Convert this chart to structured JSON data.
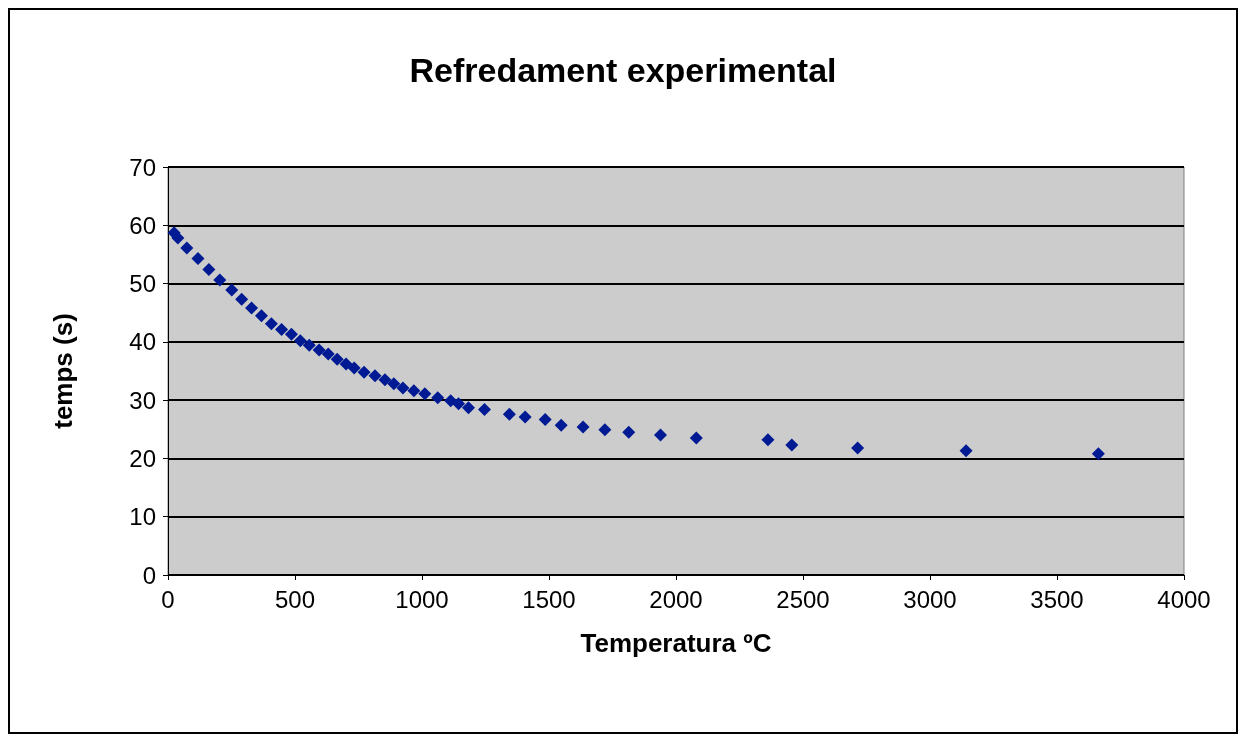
{
  "chart_data": {
    "type": "scatter",
    "title": "Refredament experimental",
    "xlabel": "Temperatura ºC",
    "ylabel": "temps (s)",
    "x": [
      24,
      39,
      74,
      118,
      161,
      204,
      251,
      290,
      329,
      368,
      407,
      447,
      486,
      521,
      556,
      595,
      631,
      666,
      701,
      733,
      772,
      815,
      854,
      889,
      925,
      968,
      1011,
      1062,
      1113,
      1144,
      1183,
      1246,
      1344,
      1406,
      1485,
      1548,
      1634,
      1720,
      1814,
      1939,
      2080,
      2362,
      2456,
      2715,
      3142,
      3663
    ],
    "series": [
      {
        "color": "#001a94",
        "values": [
          58.7,
          57.8,
          56.1,
          54.3,
          52.4,
          50.6,
          48.9,
          47.3,
          45.8,
          44.5,
          43.1,
          42.1,
          41.3,
          40.2,
          39.4,
          38.6,
          37.9,
          37.0,
          36.2,
          35.5,
          34.8,
          34.2,
          33.5,
          32.8,
          32.1,
          31.6,
          31.1,
          30.4,
          29.9,
          29.4,
          28.7,
          28.4,
          27.6,
          27.1,
          26.7,
          25.7,
          25.4,
          24.9,
          24.5,
          24.0,
          23.5,
          23.2,
          22.3,
          21.8,
          21.3,
          20.8
        ]
      }
    ],
    "xlim": [
      0,
      4000
    ],
    "xticks": [
      0,
      500,
      1000,
      1500,
      2000,
      2500,
      3000,
      3500,
      4000
    ],
    "ylim": [
      0,
      70
    ],
    "yticks": [
      0,
      10,
      20,
      30,
      40,
      50,
      60,
      70
    ],
    "grid": "y",
    "marker": "diamond"
  }
}
